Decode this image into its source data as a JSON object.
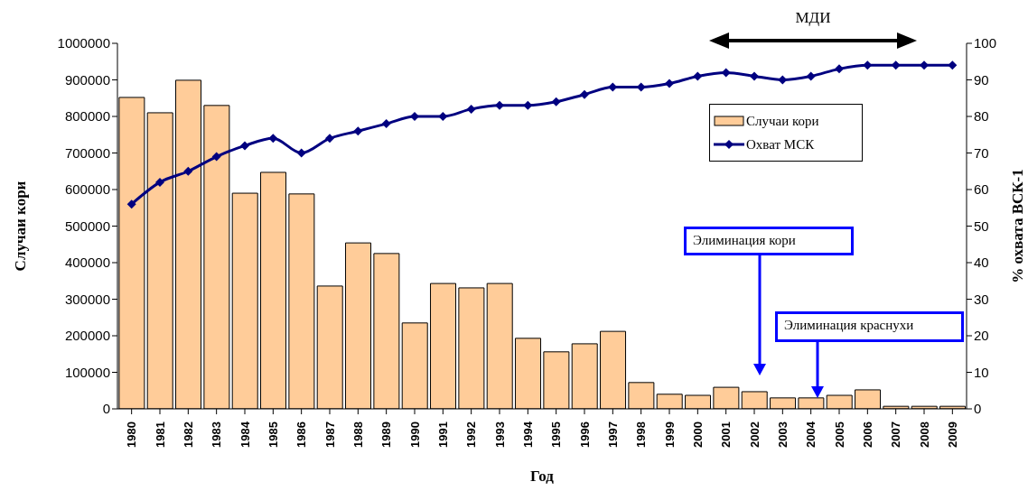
{
  "chart_data": {
    "type": "bar",
    "xlabel": "Год",
    "ylabel": "Случаи кори",
    "y2label": "% охвата ВСК-1",
    "categories": [
      "1980",
      "1981",
      "1982",
      "1983",
      "1984",
      "1985",
      "1986",
      "1987",
      "1988",
      "1989",
      "1990",
      "1991",
      "1992",
      "1993",
      "1994",
      "1995",
      "1996",
      "1997",
      "1998",
      "1999",
      "2000",
      "2001",
      "2002",
      "2003",
      "2004",
      "2005",
      "2006",
      "2007",
      "2008",
      "2009"
    ],
    "series": [
      {
        "name": "Случаи кори",
        "color": "#ffcc99",
        "values": [
          852000,
          810000,
          899000,
          830000,
          590000,
          647000,
          588000,
          336000,
          454000,
          425000,
          235000,
          343000,
          331000,
          343000,
          193000,
          156000,
          178000,
          212000,
          72000,
          40000,
          37000,
          59000,
          47000,
          30000,
          30000,
          37000,
          52000,
          7000,
          7000,
          7000
        ]
      },
      {
        "name": "Охват МСК",
        "type": "line",
        "axis": "y2",
        "color": "#000080",
        "marker": "diamond",
        "line_style": "solid",
        "values": [
          56,
          62,
          65,
          69,
          72,
          74,
          70,
          74,
          76,
          78,
          80,
          80,
          82,
          83,
          83,
          84,
          86,
          88,
          88,
          89,
          91,
          92,
          91,
          90,
          91,
          93,
          94,
          94,
          94,
          94
        ]
      }
    ],
    "ylim": [
      0,
      1000000
    ],
    "yticks": [
      0,
      100000,
      200000,
      300000,
      400000,
      500000,
      600000,
      700000,
      800000,
      900000,
      1000000
    ],
    "y2lim": [
      0,
      100
    ],
    "y2ticks": [
      0,
      10,
      20,
      30,
      40,
      50,
      60,
      70,
      80,
      90,
      100
    ],
    "grid": false,
    "legend": "top right",
    "annotations": [
      "МДИ",
      "Элиминация кори",
      "Элиминация краснухи"
    ]
  }
}
